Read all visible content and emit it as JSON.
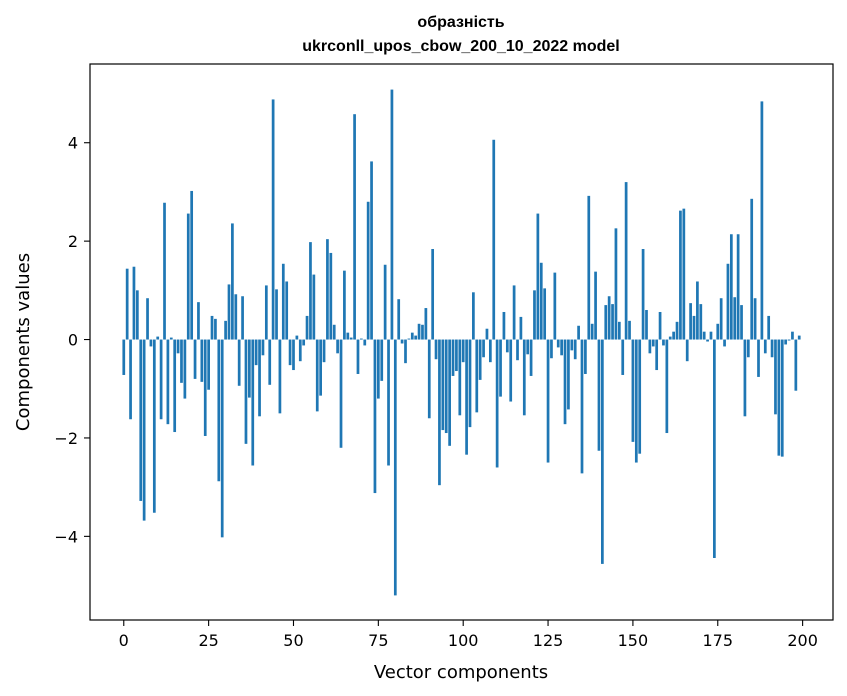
{
  "chart_data": {
    "type": "bar",
    "title": "образність",
    "subtitle": "ukrconll_upos_cbow_200_10_2022 model",
    "xlabel": "Vector components",
    "ylabel": "Components values",
    "xlim": [
      -9.95,
      208.95
    ],
    "ylim": [
      -5.7,
      5.6
    ],
    "xticks": [
      0,
      25,
      50,
      75,
      100,
      125,
      150,
      175,
      200
    ],
    "yticks": [
      -4,
      -2,
      0,
      2,
      4
    ],
    "ytick_labels": [
      "−4",
      "−2",
      "0",
      "2",
      "4"
    ],
    "grid": false,
    "legend": "none",
    "bar_color": "#1f77b4",
    "x": [
      0,
      1,
      2,
      3,
      4,
      5,
      6,
      7,
      8,
      9,
      10,
      11,
      12,
      13,
      14,
      15,
      16,
      17,
      18,
      19,
      20,
      21,
      22,
      23,
      24,
      25,
      26,
      27,
      28,
      29,
      30,
      31,
      32,
      33,
      34,
      35,
      36,
      37,
      38,
      39,
      40,
      41,
      42,
      43,
      44,
      45,
      46,
      47,
      48,
      49,
      50,
      51,
      52,
      53,
      54,
      55,
      56,
      57,
      58,
      59,
      60,
      61,
      62,
      63,
      64,
      65,
      66,
      67,
      68,
      69,
      70,
      71,
      72,
      73,
      74,
      75,
      76,
      77,
      78,
      79,
      80,
      81,
      82,
      83,
      84,
      85,
      86,
      87,
      88,
      89,
      90,
      91,
      92,
      93,
      94,
      95,
      96,
      97,
      98,
      99,
      100,
      101,
      102,
      103,
      104,
      105,
      106,
      107,
      108,
      109,
      110,
      111,
      112,
      113,
      114,
      115,
      116,
      117,
      118,
      119,
      120,
      121,
      122,
      123,
      124,
      125,
      126,
      127,
      128,
      129,
      130,
      131,
      132,
      133,
      134,
      135,
      136,
      137,
      138,
      139,
      140,
      141,
      142,
      143,
      144,
      145,
      146,
      147,
      148,
      149,
      150,
      151,
      152,
      153,
      154,
      155,
      156,
      157,
      158,
      159,
      160,
      161,
      162,
      163,
      164,
      165,
      166,
      167,
      168,
      169,
      170,
      171,
      172,
      173,
      174,
      175,
      176,
      177,
      178,
      179,
      180,
      181,
      182,
      183,
      184,
      185,
      186,
      187,
      188,
      189,
      190,
      191,
      192,
      193,
      194,
      195,
      196,
      197,
      198,
      199
    ],
    "values": [
      -0.72,
      1.44,
      -1.62,
      1.48,
      1.0,
      -3.28,
      -3.68,
      0.84,
      -0.14,
      -3.52,
      0.06,
      -1.62,
      2.78,
      -1.72,
      0.04,
      -1.88,
      -0.28,
      -0.88,
      -1.2,
      2.56,
      3.02,
      -0.8,
      0.76,
      -0.86,
      -1.96,
      -1.02,
      0.48,
      0.42,
      -2.88,
      -4.02,
      0.38,
      1.12,
      2.36,
      0.92,
      -0.94,
      0.88,
      -2.12,
      -1.18,
      -2.56,
      -0.52,
      -1.56,
      -0.32,
      1.1,
      -0.92,
      4.88,
      1.02,
      -1.5,
      1.54,
      1.18,
      -0.52,
      -0.62,
      0.08,
      -0.44,
      -0.12,
      0.48,
      1.98,
      1.32,
      -1.46,
      -1.14,
      -0.46,
      2.04,
      1.76,
      0.3,
      -0.28,
      -2.2,
      1.4,
      0.14,
      0.04,
      4.58,
      -0.7,
      0.02,
      -0.12,
      2.8,
      3.62,
      -3.12,
      -1.2,
      -0.84,
      1.52,
      -2.56,
      5.08,
      -5.2,
      0.82,
      -0.08,
      -0.48,
      0.02,
      0.14,
      0.08,
      0.32,
      0.3,
      0.64,
      -1.6,
      1.84,
      -0.4,
      -2.96,
      -1.84,
      -1.9,
      -2.16,
      -0.74,
      -0.64,
      -1.54,
      -0.46,
      -2.34,
      -1.78,
      0.96,
      -1.48,
      -0.82,
      -0.36,
      0.22,
      -0.46,
      4.06,
      -2.6,
      -1.16,
      0.56,
      -0.26,
      -1.26,
      1.1,
      -0.42,
      0.46,
      -1.54,
      -0.3,
      -0.74,
      1.0,
      2.56,
      1.56,
      1.04,
      -2.5,
      -0.38,
      1.36,
      -0.16,
      -0.32,
      -1.72,
      -1.42,
      -0.22,
      -0.4,
      0.28,
      -2.72,
      -0.7,
      2.92,
      0.32,
      1.38,
      -2.26,
      -4.56,
      0.7,
      0.88,
      0.72,
      2.26,
      0.36,
      -0.72,
      3.2,
      0.38,
      -2.08,
      -2.5,
      -2.32,
      1.84,
      0.6,
      -0.28,
      -0.14,
      -0.62,
      0.56,
      -0.12,
      -1.9,
      0.06,
      0.16,
      0.36,
      2.62,
      2.66,
      -0.44,
      0.74,
      0.48,
      1.18,
      0.72,
      0.16,
      -0.04,
      0.16,
      -4.44,
      0.32,
      0.84,
      -0.14,
      1.54,
      2.14,
      0.86,
      2.14,
      0.7,
      -1.56,
      -0.36,
      2.86,
      0.84,
      -0.76,
      4.84,
      -0.28,
      0.48,
      -0.36,
      -1.52,
      -2.36,
      -2.38,
      -0.1,
      -0.02,
      0.16,
      -1.04,
      0.08
    ]
  }
}
